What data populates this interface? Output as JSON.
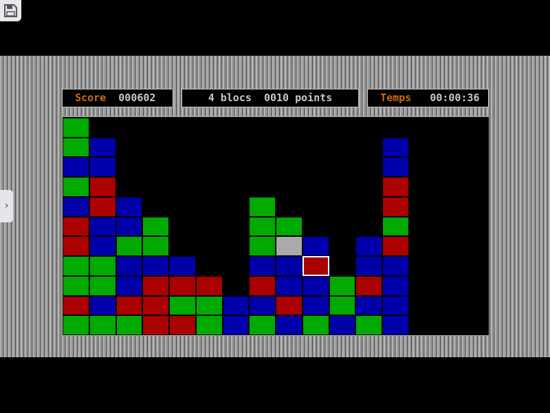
{
  "header": {
    "score_label": "Score",
    "score_value": "000602",
    "selection_text": "4 blocs  0010 points",
    "time_label": "Temps",
    "time_value": "00:00:36"
  },
  "colors": {
    "G": "#00aa00",
    "B": "#0000aa",
    "R": "#aa0000",
    "X": "#aaaaaa",
    "label": "#d06a10"
  },
  "board": {
    "columns": 16,
    "rows": [
      "G...............",
      "GB..........B...",
      "BB..........B...",
      "GR..........R...",
      "BRB....G....R...",
      "RBBG...GG...G...",
      "RBGG...GXB.BR...",
      "GGBBB..BBR.BB...",
      "GGBRRR.RBBGRB...",
      "RBRRGGBBRBGBB...",
      "GGGRRGBGBGBGB..."
    ],
    "selected": {
      "row": 7,
      "col": 9
    }
  },
  "toolbar": {
    "save_icon": "floppy-disk-icon",
    "side_icon": "chevron-right-icon"
  }
}
